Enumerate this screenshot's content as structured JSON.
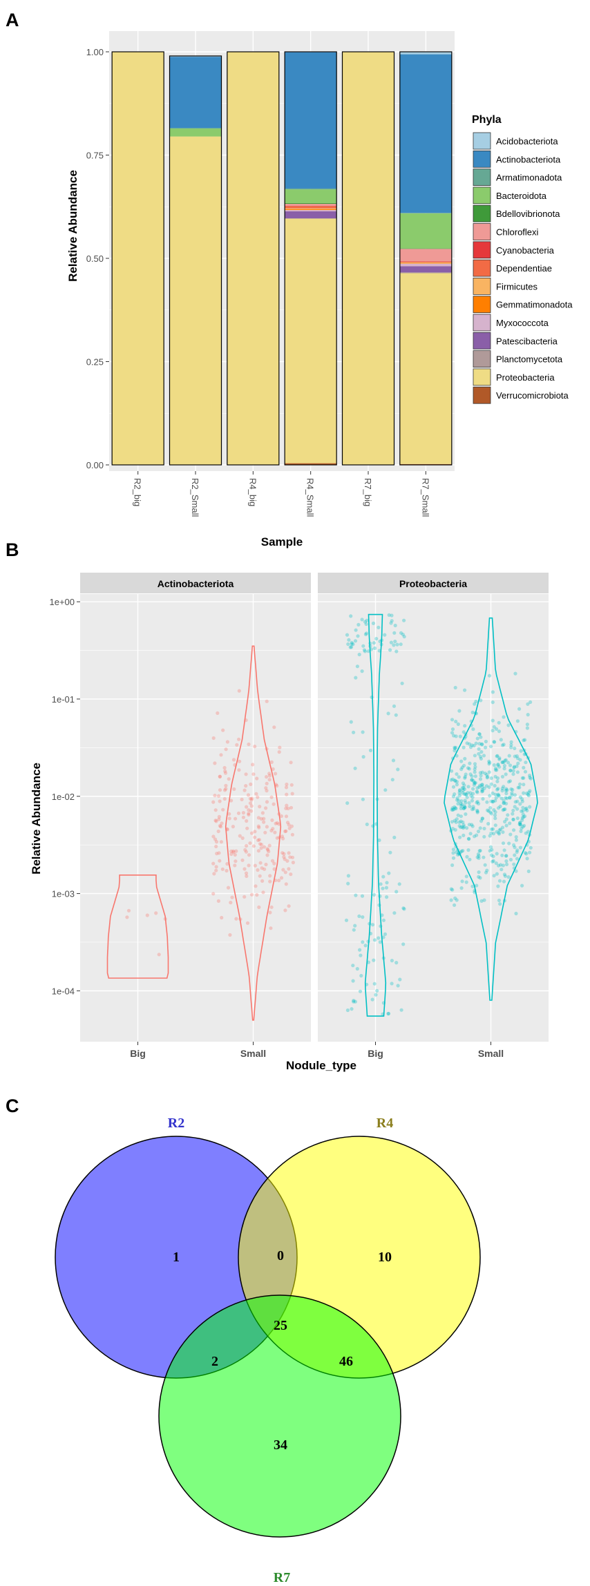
{
  "panels": {
    "a": "A",
    "b": "B",
    "c": "C"
  },
  "chart_data": [
    {
      "type": "bar",
      "stacked": true,
      "title": "",
      "xlabel": "Sample",
      "ylabel": "Relative Abundance",
      "ylim": [
        0,
        1
      ],
      "yticks": [
        "0.00",
        "0.25",
        "0.50",
        "0.75",
        "1.00"
      ],
      "categories": [
        "R2_big",
        "R2_Small",
        "R4_big",
        "R4_Small",
        "R7_big",
        "R7_Small"
      ],
      "legend": {
        "title": "Phyla",
        "position": "right"
      },
      "series": [
        {
          "name": "Acidobacteriota",
          "color": "#A6CEE3",
          "values": [
            0,
            0.002,
            0,
            0.001,
            0,
            0.006
          ]
        },
        {
          "name": "Actinobacteriota",
          "color": "#3A89C2",
          "values": [
            0,
            0.173,
            0,
            0.33,
            0,
            0.384
          ]
        },
        {
          "name": "Armatimonadota",
          "color": "#66A894",
          "values": [
            0,
            0,
            0,
            0.002,
            0,
            0.001
          ]
        },
        {
          "name": "Bacteroidota",
          "color": "#8BCB6C",
          "values": [
            0,
            0.02,
            0,
            0.033,
            0,
            0.085
          ]
        },
        {
          "name": "Bdellovibrionota",
          "color": "#3F9A3A",
          "values": [
            0,
            0,
            0,
            0.002,
            0,
            0.001
          ]
        },
        {
          "name": "Chloroflexi",
          "color": "#EF9A96",
          "values": [
            0,
            0,
            0,
            0.005,
            0,
            0.03
          ]
        },
        {
          "name": "Cyanobacteria",
          "color": "#E5383B",
          "values": [
            0,
            0,
            0,
            0.001,
            0,
            0.001
          ]
        },
        {
          "name": "Dependentiae",
          "color": "#F26B45",
          "values": [
            0,
            0,
            0,
            0.005,
            0,
            0.002
          ]
        },
        {
          "name": "Firmicutes",
          "color": "#F9B462",
          "values": [
            0,
            0,
            0,
            0.002,
            0,
            0.002
          ]
        },
        {
          "name": "Gemmatimonadota",
          "color": "#FF7F00",
          "values": [
            0,
            0,
            0,
            0.002,
            0,
            0.001
          ]
        },
        {
          "name": "Myxococcota",
          "color": "#D6B3CD",
          "values": [
            0,
            0,
            0,
            0.003,
            0,
            0.006
          ]
        },
        {
          "name": "Patescibacteria",
          "color": "#8A5FA8",
          "values": [
            0,
            0,
            0,
            0.017,
            0,
            0.015
          ]
        },
        {
          "name": "Planctomycetota",
          "color": "#B09A99",
          "values": [
            0,
            0,
            0,
            0.001,
            0,
            0.002
          ]
        },
        {
          "name": "Proteobacteria",
          "color": "#EFDC85",
          "values": [
            1,
            0.795,
            1,
            0.592,
            1,
            0.462
          ]
        },
        {
          "name": "Verrucomicrobiota",
          "color": "#B15928",
          "values": [
            0,
            0,
            0,
            0.004,
            0,
            0.002
          ]
        }
      ]
    },
    {
      "type": "violin",
      "xlabel": "Nodule_type",
      "ylabel": "Relative Abundance",
      "yscale": "log10",
      "ylim": [
        3e-05,
        1.2
      ],
      "yticks": [
        "1e-04",
        "1e-03",
        "1e-02",
        "1e-01",
        "1e+00"
      ],
      "facets": [
        {
          "title": "Actinobacteriota",
          "color": "#F8766D",
          "groups": [
            {
              "name": "Big",
              "min": 0.000135,
              "max": 0.00155,
              "n": 6
            },
            {
              "name": "Small",
              "min": 5e-05,
              "max": 0.35,
              "n": 240
            }
          ]
        },
        {
          "title": "Proteobacteria",
          "color": "#00BFC4",
          "groups": [
            {
              "name": "Big",
              "min": 5.5e-05,
              "max": 0.74,
              "n": 150
            },
            {
              "name": "Small",
              "min": 8e-05,
              "max": 0.68,
              "n": 520
            }
          ]
        }
      ]
    },
    {
      "type": "venn",
      "sets": [
        {
          "name": "R2",
          "color": "#0000FF",
          "label_color": "#3333CC"
        },
        {
          "name": "R4",
          "color": "#FFFF00",
          "label_color": "#8B7F1E"
        },
        {
          "name": "R7",
          "color": "#00FF00",
          "label_color": "#2E8B2E"
        }
      ],
      "regions": {
        "R2_only": 1,
        "R4_only": 10,
        "R7_only": 34,
        "R2_R4": 0,
        "R2_R7": 2,
        "R4_R7": 46,
        "R2_R4_R7": 25
      }
    }
  ]
}
